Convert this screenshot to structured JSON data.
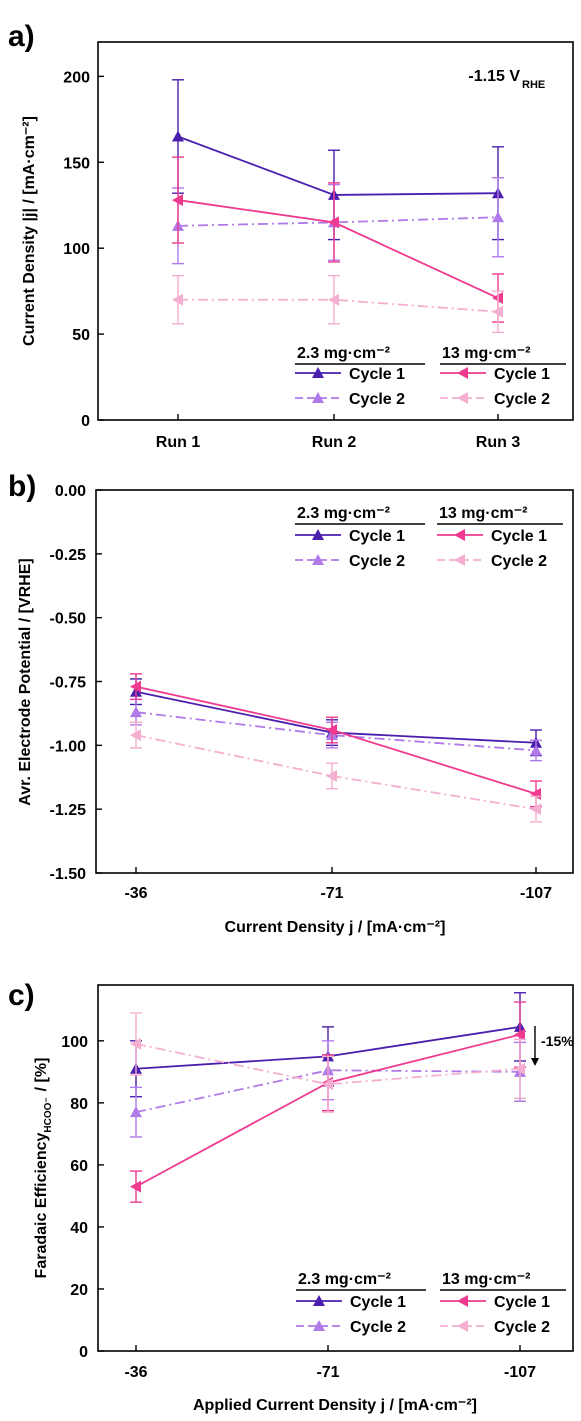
{
  "panels": [
    {
      "label": "a)",
      "annotation_main": "-1.15 V",
      "annotation_sub": "RHE",
      "ylabel": "Current Density |j| / [mA·cm⁻²]",
      "legend": {
        "group1": "2.3 mg·cm⁻²",
        "group2": "13 mg·cm⁻²",
        "cycle1": "Cycle 1",
        "cycle2": "Cycle 2"
      }
    },
    {
      "label": "b)",
      "ylabel": "Avr. Electrode Potential / [VRHE]",
      "xlabel": "Current Density j / [mA·cm⁻²]",
      "legend": {
        "group1": "2.3 mg·cm⁻²",
        "group2": "13 mg·cm⁻²",
        "cycle1": "Cycle 1",
        "cycle2": "Cycle 2"
      }
    },
    {
      "label": "c)",
      "ylabel_main": "Faradaic Efficiency",
      "ylabel_sub": "HCOO⁻",
      "ylabel_end": "/ [%]",
      "annotation": "-15%",
      "xlabel": "Applied Current Density j / [mA·cm⁻²]",
      "legend": {
        "group1": "2.3 mg·cm⁻²",
        "group2": "13 mg·cm⁻²",
        "cycle1": "Cycle 1",
        "cycle2": "Cycle 2"
      }
    }
  ],
  "series_style": {
    "m23_c1": {
      "color": "#4b1fae",
      "dash": "solid",
      "marker": "triangle-up"
    },
    "m23_c2": {
      "color": "#b07ae8",
      "dash": "dashdot",
      "marker": "triangle-up"
    },
    "m13_c1": {
      "color": "#ef3a8f",
      "dash": "solid",
      "marker": "triangle-left"
    },
    "m13_c2": {
      "color": "#f4afd0",
      "dash": "dashdot",
      "marker": "triangle-left"
    }
  },
  "chart_data": [
    {
      "type": "line",
      "categories": [
        "Run 1",
        "Run 2",
        "Run 3"
      ],
      "ylim": [
        0,
        220
      ],
      "yticks": [
        0,
        50,
        100,
        150,
        200
      ],
      "grid": false,
      "legend_position": "bottom-right",
      "series": [
        {
          "key": "m23_c1",
          "values": [
            165,
            131,
            132
          ],
          "err": [
            33,
            26,
            27
          ]
        },
        {
          "key": "m23_c2",
          "values": [
            113,
            115,
            118
          ],
          "err": [
            22,
            22,
            23
          ]
        },
        {
          "key": "m13_c1",
          "values": [
            128,
            115,
            71
          ],
          "err": [
            25,
            23,
            14
          ]
        },
        {
          "key": "m13_c2",
          "values": [
            70,
            70,
            63
          ],
          "err": [
            14,
            14,
            12
          ]
        }
      ]
    },
    {
      "type": "line",
      "categories": [
        "-36",
        "-71",
        "-107"
      ],
      "ylim": [
        -1.5,
        0.0
      ],
      "yticks": [
        "0.00",
        "-0.25",
        "-0.50",
        "-0.75",
        "-1.00",
        "-1.25",
        "-1.50"
      ],
      "grid": false,
      "legend_position": "top-right",
      "series": [
        {
          "key": "m23_c1",
          "values": [
            -0.79,
            -0.95,
            -0.99
          ],
          "err": [
            0.05,
            0.05,
            0.05
          ]
        },
        {
          "key": "m23_c2",
          "values": [
            -0.87,
            -0.96,
            -1.02
          ],
          "err": [
            0.05,
            0.05,
            0.04
          ]
        },
        {
          "key": "m13_c1",
          "values": [
            -0.77,
            -0.94,
            -1.19
          ],
          "err": [
            0.05,
            0.05,
            0.05
          ]
        },
        {
          "key": "m13_c2",
          "values": [
            -0.96,
            -1.12,
            -1.25
          ],
          "err": [
            0.05,
            0.05,
            0.05
          ]
        }
      ]
    },
    {
      "type": "line",
      "categories": [
        "-36",
        "-71",
        "-107"
      ],
      "ylim": [
        0,
        118
      ],
      "yticks": [
        0,
        20,
        40,
        60,
        80,
        100
      ],
      "grid": false,
      "legend_position": "bottom-right",
      "series": [
        {
          "key": "m23_c1",
          "values": [
            91,
            95,
            104.5
          ],
          "err": [
            9,
            9.5,
            11
          ]
        },
        {
          "key": "m23_c2",
          "values": [
            77,
            90.5,
            90
          ],
          "err": [
            8,
            9.5,
            9.5
          ]
        },
        {
          "key": "m13_c1",
          "values": [
            53,
            86.5,
            102
          ],
          "err": [
            5,
            9,
            10.5
          ]
        },
        {
          "key": "m13_c2",
          "values": [
            99,
            86,
            91
          ],
          "err": [
            10,
            9,
            9.5
          ]
        }
      ]
    }
  ]
}
